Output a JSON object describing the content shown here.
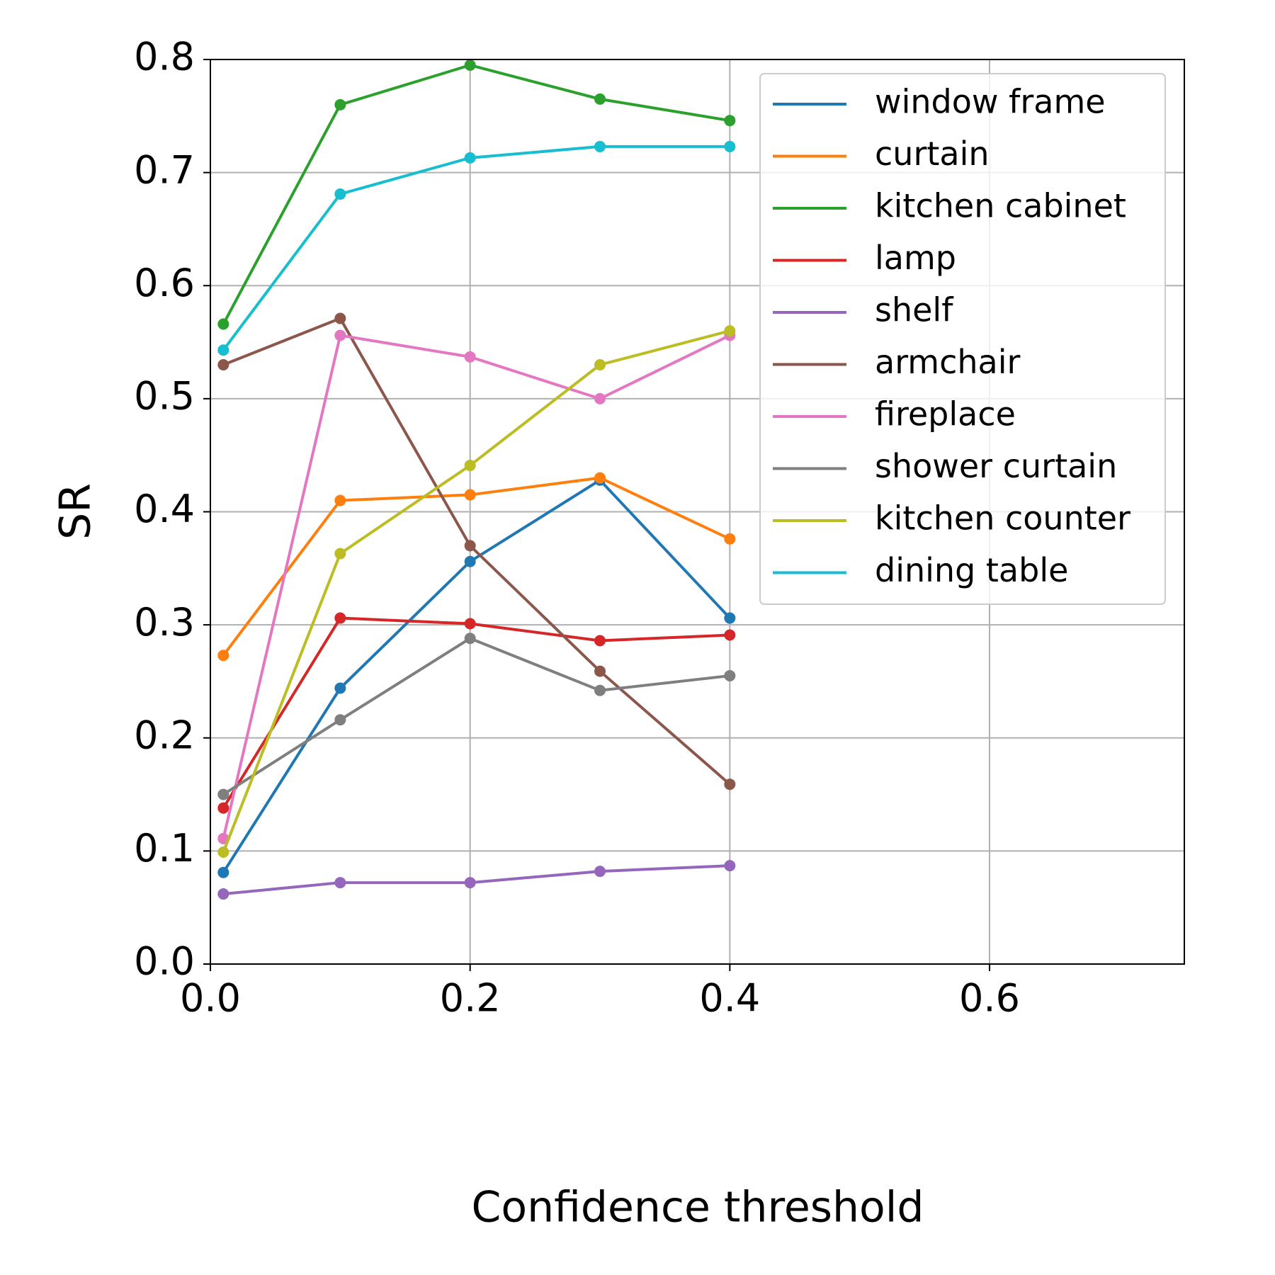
{
  "chart_data": {
    "type": "line",
    "x_label": "Confidence threshold",
    "y_label": "SR",
    "x": [
      0.01,
      0.1,
      0.2,
      0.3,
      0.4
    ],
    "series": [
      {
        "name": "window frame",
        "color": "#1f77b4",
        "values": [
          0.081,
          0.244,
          0.356,
          0.428,
          0.306
        ]
      },
      {
        "name": "curtain",
        "color": "#ff7f0e",
        "values": [
          0.273,
          0.41,
          0.415,
          0.43,
          0.376
        ]
      },
      {
        "name": "kitchen cabinet",
        "color": "#2ca02c",
        "values": [
          0.566,
          0.76,
          0.795,
          0.765,
          0.746
        ]
      },
      {
        "name": "lamp",
        "color": "#d62728",
        "values": [
          0.138,
          0.306,
          0.301,
          0.286,
          0.291
        ]
      },
      {
        "name": "shelf",
        "color": "#9467bd",
        "values": [
          0.062,
          0.072,
          0.072,
          0.082,
          0.087
        ]
      },
      {
        "name": "armchair",
        "color": "#8c564b",
        "values": [
          0.53,
          0.571,
          0.37,
          0.259,
          0.159
        ]
      },
      {
        "name": "fireplace",
        "color": "#e377c2",
        "values": [
          0.111,
          0.556,
          0.537,
          0.5,
          0.556
        ]
      },
      {
        "name": "shower curtain",
        "color": "#7f7f7f",
        "values": [
          0.15,
          0.216,
          0.288,
          0.242,
          0.255
        ]
      },
      {
        "name": "kitchen counter",
        "color": "#bcbd22",
        "values": [
          0.099,
          0.363,
          0.441,
          0.53,
          0.56
        ]
      },
      {
        "name": "dining table",
        "color": "#17becf",
        "values": [
          0.543,
          0.681,
          0.713,
          0.723,
          0.723
        ]
      }
    ],
    "xlim": [
      0,
      0.75
    ],
    "ylim": [
      0,
      0.8
    ],
    "xticks": [
      {
        "value": 0,
        "label": "0.0"
      },
      0.2,
      0.4,
      0.6
    ],
    "yticks": [
      {
        "value": 0,
        "label": "0.0"
      },
      0.1,
      0.2,
      0.3,
      0.4,
      0.5,
      0.6,
      0.7,
      0.8
    ],
    "grid": true,
    "legend": "upper right"
  }
}
